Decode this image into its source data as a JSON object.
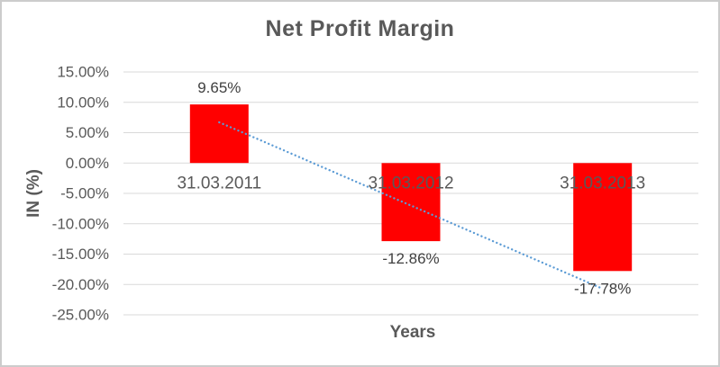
{
  "frame": {
    "background": "#FFFFFF",
    "border_color": "#CCCCCC"
  },
  "chart_data": {
    "type": "bar",
    "title": "Net Profit Margin",
    "xlabel": "Years",
    "ylabel": "IN (%)",
    "categories": [
      "31.03.2011",
      "31.03.2012",
      "31.03.2013"
    ],
    "values": [
      9.65,
      -12.86,
      -17.78
    ],
    "data_labels": [
      "9.65%",
      "-12.86%",
      "-17.78%"
    ],
    "ylim": [
      -25,
      15
    ],
    "yticks": [
      15,
      10,
      5,
      0,
      -5,
      -10,
      -15,
      -20,
      -25
    ],
    "ytick_labels": [
      "15.00%",
      "10.00%",
      "5.00%",
      "0.00%",
      "-5.00%",
      "-10.00%",
      "-15.00%",
      "-20.00%",
      "-25.00%"
    ],
    "grid": true,
    "legend": "none",
    "bar_color": "#FF0000",
    "trendline": {
      "type": "linear",
      "style": "dotted",
      "color": "#5B9BD5",
      "start_value": 6.7,
      "end_value": -20.7
    },
    "colors": {
      "grid": "#D9D9D9",
      "axis_text": "#595959",
      "category_text": "#595959",
      "data_label_text": "#404040",
      "title_text": "#595959"
    }
  }
}
